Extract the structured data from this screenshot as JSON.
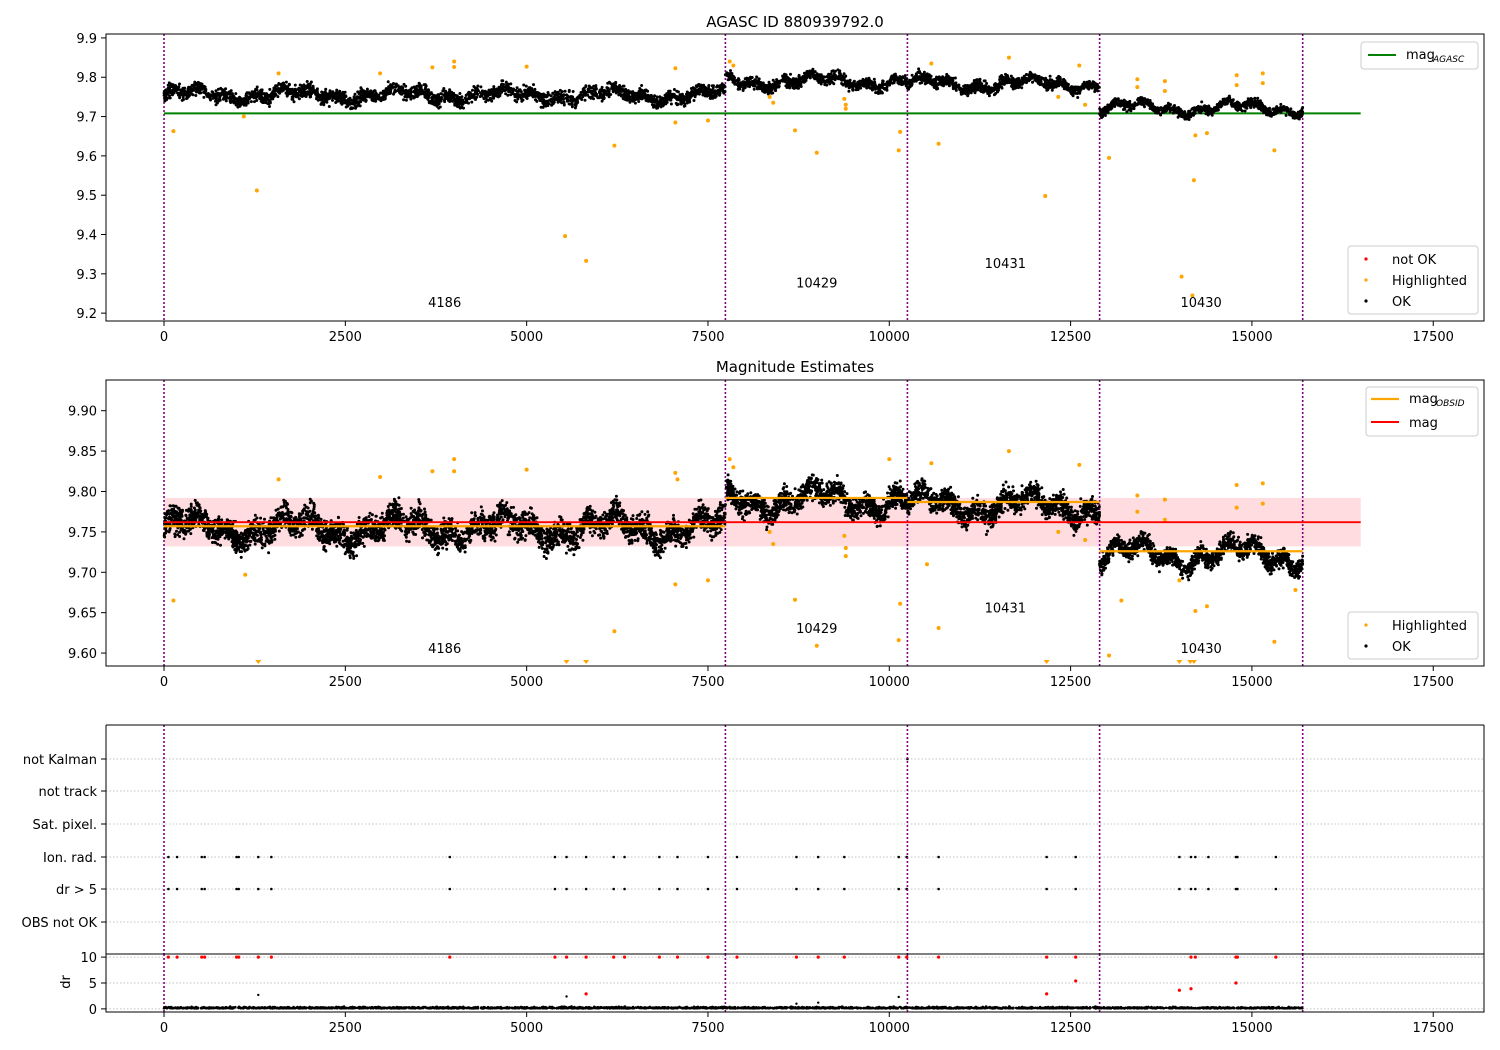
{
  "colors": {
    "ok": "#000000",
    "highlighted": "#ffa500",
    "not_ok": "#ff0000",
    "agasc_line": "#008000",
    "mean_line": "#ff0000",
    "obsid_line": "#ffa500",
    "band": "#ffc0c6",
    "obsid_boundary": "#800080",
    "grid": "#b0b0b0"
  },
  "chart_data": [
    {
      "type": "scatter",
      "title": "AGASC ID 880939792.0",
      "xlabel": "",
      "ylabel": "",
      "xlim": [
        -800,
        18200
      ],
      "ylim": [
        9.18,
        9.91
      ],
      "xticks": [
        0,
        2500,
        5000,
        7500,
        10000,
        12500,
        15000,
        17500
      ],
      "yticks": [
        9.2,
        9.3,
        9.4,
        9.5,
        9.6,
        9.7,
        9.8,
        9.9
      ],
      "ytick_labels": [
        "9.2",
        "9.3",
        "9.4",
        "9.5",
        "9.6",
        "9.7",
        "9.8",
        "9.9"
      ],
      "obsid_boundaries": [
        0,
        7740,
        10250,
        12900,
        15700
      ],
      "obsid_labels": [
        {
          "text": "4186",
          "x": 3870,
          "y": 9.215
        },
        {
          "text": "10429",
          "x": 9000,
          "y": 9.265
        },
        {
          "text": "10431",
          "x": 11600,
          "y": 9.315
        },
        {
          "text": "10430",
          "x": 14300,
          "y": 9.215
        }
      ],
      "lines": [
        {
          "name": "AGASC",
          "x": [
            0,
            16500
          ],
          "y": [
            9.708,
            9.708
          ]
        }
      ],
      "legend_top": {
        "position": "upper right",
        "entries": [
          {
            "label": "mag",
            "sub": "AGASC"
          }
        ]
      },
      "legend_bottom": {
        "position": "lower right",
        "entries": [
          "not OK",
          "Highlighted",
          "OK"
        ]
      },
      "ok_segments": [
        {
          "x": [
            0,
            7740
          ],
          "center": 9.755,
          "spread": 0.06
        },
        {
          "x": [
            7740,
            10250
          ],
          "center": 9.79,
          "spread": 0.05
        },
        {
          "x": [
            10250,
            12900
          ],
          "center": 9.783,
          "spread": 0.05
        },
        {
          "x": [
            12900,
            15700
          ],
          "center": 9.722,
          "spread": 0.04
        }
      ],
      "highlighted": [
        [
          130,
          9.663
        ],
        [
          1280,
          9.512
        ],
        [
          5530,
          9.396
        ],
        [
          5820,
          9.333
        ],
        [
          6210,
          9.626
        ],
        [
          7050,
          9.685
        ],
        [
          8700,
          9.665
        ],
        [
          9000,
          9.608
        ],
        [
          10130,
          9.614
        ],
        [
          10150,
          9.661
        ],
        [
          10680,
          9.631
        ],
        [
          12150,
          9.498
        ],
        [
          13030,
          9.595
        ],
        [
          14030,
          9.293
        ],
        [
          14200,
          9.538
        ],
        [
          14180,
          9.245
        ],
        [
          15310,
          9.614
        ],
        [
          14380,
          9.658
        ],
        [
          14220,
          9.652
        ],
        [
          3700,
          9.825
        ],
        [
          4000,
          9.84
        ],
        [
          4000,
          9.826
        ],
        [
          5000,
          9.827
        ],
        [
          7050,
          9.823
        ],
        [
          7800,
          9.84
        ],
        [
          7850,
          9.83
        ],
        [
          9400,
          9.73
        ],
        [
          9400,
          9.72
        ],
        [
          9380,
          9.745
        ],
        [
          11650,
          9.85
        ],
        [
          10580,
          9.835
        ],
        [
          12620,
          9.83
        ],
        [
          13420,
          9.795
        ],
        [
          13420,
          9.775
        ],
        [
          13800,
          9.79
        ],
        [
          13800,
          9.765
        ],
        [
          14790,
          9.805
        ],
        [
          14790,
          9.78
        ],
        [
          15150,
          9.81
        ],
        [
          15150,
          9.785
        ],
        [
          8350,
          9.75
        ],
        [
          8400,
          9.735
        ],
        [
          1580,
          9.81
        ],
        [
          2980,
          9.81
        ],
        [
          7500,
          9.69
        ],
        [
          1100,
          9.7
        ],
        [
          12700,
          9.73
        ],
        [
          12330,
          9.75
        ]
      ]
    },
    {
      "type": "scatter",
      "title": "Magnitude Estimates",
      "xlabel": "",
      "ylabel": "",
      "xlim": [
        -800,
        18200
      ],
      "ylim": [
        9.584,
        9.938
      ],
      "xticks": [
        0,
        2500,
        5000,
        7500,
        10000,
        12500,
        15000,
        17500
      ],
      "yticks": [
        9.6,
        9.65,
        9.7,
        9.75,
        9.8,
        9.85,
        9.9
      ],
      "ytick_labels": [
        "9.60",
        "9.65",
        "9.70",
        "9.75",
        "9.80",
        "9.85",
        "9.90"
      ],
      "obsid_boundaries": [
        0,
        7740,
        10250,
        12900,
        15700
      ],
      "obsid_labels": [
        {
          "text": "4186",
          "x": 3870,
          "y": 9.6
        },
        {
          "text": "10429",
          "x": 9000,
          "y": 9.625
        },
        {
          "text": "10431",
          "x": 11600,
          "y": 9.65
        },
        {
          "text": "10430",
          "x": 14300,
          "y": 9.6
        }
      ],
      "band": {
        "x": [
          0,
          16500
        ],
        "y": [
          9.732,
          9.792
        ]
      },
      "lines": [
        {
          "name": "mag",
          "x": [
            0,
            16500
          ],
          "y": [
            9.762,
            9.762
          ]
        }
      ],
      "obsid_means": [
        {
          "x": [
            0,
            7740
          ],
          "y": 9.757
        },
        {
          "x": [
            7740,
            10250
          ],
          "y": 9.792
        },
        {
          "x": [
            10250,
            12900
          ],
          "y": 9.787
        },
        {
          "x": [
            12900,
            15700
          ],
          "y": 9.726
        }
      ],
      "legend_top": {
        "position": "upper right",
        "entries": [
          {
            "label": "mag",
            "sub": "OBSID"
          },
          {
            "label": "mag",
            "sub": ""
          }
        ]
      },
      "legend_bottom": {
        "position": "lower right",
        "entries": [
          "Highlighted",
          "OK"
        ]
      },
      "ok_segments": [
        {
          "x": [
            0,
            7740
          ],
          "center": 9.755,
          "spread": 0.06
        },
        {
          "x": [
            7740,
            10250
          ],
          "center": 9.79,
          "spread": 0.05
        },
        {
          "x": [
            10250,
            12900
          ],
          "center": 9.783,
          "spread": 0.05
        },
        {
          "x": [
            12900,
            15700
          ],
          "center": 9.722,
          "spread": 0.04
        }
      ],
      "highlighted": [
        [
          130,
          9.665
        ],
        [
          1120,
          9.697
        ],
        [
          6210,
          9.627
        ],
        [
          7050,
          9.685
        ],
        [
          8700,
          9.666
        ],
        [
          9000,
          9.609
        ],
        [
          10130,
          9.616
        ],
        [
          10150,
          9.661
        ],
        [
          10680,
          9.631
        ],
        [
          13030,
          9.597
        ],
        [
          13200,
          9.665
        ],
        [
          14380,
          9.658
        ],
        [
          14220,
          9.652
        ],
        [
          15310,
          9.614
        ],
        [
          3700,
          9.825
        ],
        [
          4000,
          9.84
        ],
        [
          4000,
          9.825
        ],
        [
          5000,
          9.827
        ],
        [
          7050,
          9.823
        ],
        [
          7800,
          9.84
        ],
        [
          7850,
          9.83
        ],
        [
          9400,
          9.73
        ],
        [
          9400,
          9.72
        ],
        [
          9380,
          9.745
        ],
        [
          11650,
          9.85
        ],
        [
          10580,
          9.835
        ],
        [
          12620,
          9.833
        ],
        [
          13420,
          9.795
        ],
        [
          13420,
          9.775
        ],
        [
          13800,
          9.79
        ],
        [
          13800,
          9.765
        ],
        [
          14790,
          9.808
        ],
        [
          14790,
          9.78
        ],
        [
          15150,
          9.81
        ],
        [
          15150,
          9.785
        ],
        [
          8350,
          9.75
        ],
        [
          8400,
          9.735
        ],
        [
          1580,
          9.815
        ],
        [
          2980,
          9.818
        ],
        [
          7500,
          9.69
        ],
        [
          12330,
          9.75
        ],
        [
          10520,
          9.71
        ],
        [
          10000,
          9.84
        ],
        [
          7080,
          9.815
        ],
        [
          12700,
          9.74
        ],
        [
          14000,
          9.69
        ],
        [
          15600,
          9.678
        ]
      ],
      "below_markers": [
        1300,
        5550,
        5820,
        12170,
        14000,
        14150,
        14200
      ]
    },
    {
      "type": "scatter",
      "title": "",
      "xlabel": "",
      "ylabel": "",
      "xlim": [
        -800,
        18200
      ],
      "ylim": [
        0,
        1
      ],
      "obsid_boundaries": [
        0,
        7740,
        10250,
        12900,
        15700
      ],
      "flag_rows": [
        "not Kalman",
        "not track",
        "Sat. pixel.",
        "Ion. rad.",
        "dr > 5",
        "OBS not OK"
      ],
      "flag_points": {
        "not Kalman": [
          10250
        ],
        "not track": [],
        "Sat. pixel.": [],
        "Ion. rad.": [
          60,
          180,
          520,
          560,
          1000,
          1030,
          1300,
          1480,
          3940,
          5390,
          5550,
          5820,
          6200,
          6350,
          6830,
          7080,
          7500,
          7900,
          8720,
          9020,
          9380,
          10130,
          10240,
          10680,
          12170,
          12570,
          14000,
          14160,
          14220,
          14400,
          14780,
          14800,
          15330
        ],
        "dr > 5": [
          60,
          180,
          520,
          560,
          1000,
          1030,
          1300,
          1480,
          3940,
          5390,
          5550,
          5820,
          6200,
          6350,
          6830,
          7080,
          7500,
          7900,
          8720,
          9020,
          9380,
          10130,
          10240,
          10680,
          12170,
          12570,
          14000,
          14160,
          14220,
          14400,
          14780,
          14800,
          15330
        ],
        "OBS not OK": []
      }
    },
    {
      "type": "scatter",
      "title": "",
      "xlabel": "",
      "ylabel": "dr",
      "xlim": [
        -800,
        18200
      ],
      "ylim": [
        -0.6,
        10.6
      ],
      "xticks": [
        0,
        2500,
        5000,
        7500,
        10000,
        12500,
        15000,
        17500
      ],
      "yticks": [
        0,
        5,
        10
      ],
      "obsid_boundaries": [
        0,
        7740,
        10250,
        12900,
        15700
      ],
      "red_points": [
        [
          60,
          10
        ],
        [
          180,
          10
        ],
        [
          520,
          10
        ],
        [
          560,
          10
        ],
        [
          1000,
          10
        ],
        [
          1030,
          10
        ],
        [
          1300,
          10
        ],
        [
          1480,
          10
        ],
        [
          3940,
          10
        ],
        [
          5390,
          10
        ],
        [
          5550,
          10
        ],
        [
          5820,
          10
        ],
        [
          6200,
          10
        ],
        [
          6350,
          10
        ],
        [
          6830,
          10
        ],
        [
          7080,
          10
        ],
        [
          7500,
          10
        ],
        [
          7900,
          10
        ],
        [
          8720,
          10
        ],
        [
          9020,
          10
        ],
        [
          9380,
          10
        ],
        [
          10130,
          10
        ],
        [
          10240,
          10
        ],
        [
          10680,
          10
        ],
        [
          12170,
          10
        ],
        [
          12570,
          10
        ],
        [
          14160,
          10
        ],
        [
          14220,
          10
        ],
        [
          14780,
          10
        ],
        [
          14800,
          10
        ],
        [
          15330,
          10
        ],
        [
          5820,
          2.9
        ],
        [
          12170,
          2.9
        ],
        [
          12570,
          5.4
        ],
        [
          14000,
          3.6
        ],
        [
          14160,
          3.9
        ],
        [
          14780,
          5.0
        ]
      ],
      "black_points": [
        [
          1300,
          2.7
        ],
        [
          5550,
          2.4
        ],
        [
          10130,
          2.3
        ],
        [
          9020,
          1.2
        ],
        [
          8720,
          1.0
        ]
      ]
    }
  ]
}
